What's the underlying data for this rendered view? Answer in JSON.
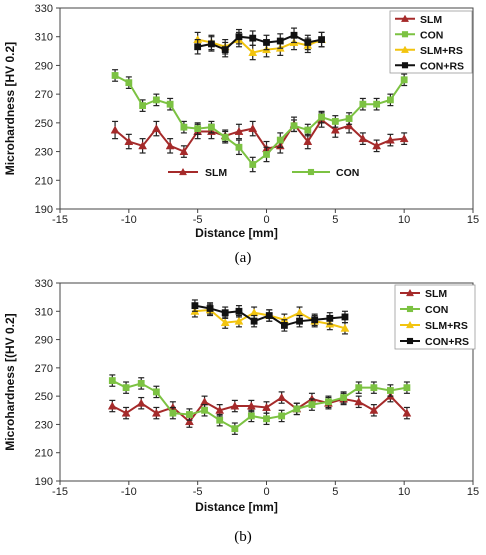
{
  "chart_data": [
    {
      "type": "line",
      "panel_label": "(a)",
      "xlabel": "Distance [mm]",
      "ylabel": "Microhardness [HV 0.2]",
      "xlim": [
        -15,
        15
      ],
      "ylim": [
        190,
        330
      ],
      "xticks": [
        -15,
        -10,
        -5,
        0,
        5,
        10,
        15
      ],
      "yticks": [
        190,
        210,
        230,
        250,
        270,
        290,
        310,
        330
      ],
      "grid": false,
      "legend": "top-right",
      "inline_labels": [
        "SLM",
        "CON"
      ],
      "series": [
        {
          "name": "SLM",
          "color": "#a52a2a",
          "marker": "triangle",
          "x": [
            -11,
            -10,
            -9,
            -8,
            -7,
            -6,
            -5,
            -4,
            -3,
            -2,
            -1,
            0,
            1,
            2,
            3,
            4,
            5,
            6,
            7,
            8,
            9,
            10
          ],
          "y": [
            245,
            237,
            234,
            246,
            234,
            230,
            244,
            244,
            241,
            244,
            246,
            232,
            234,
            249,
            237,
            252,
            245,
            248,
            239,
            234,
            238,
            239
          ],
          "err": [
            6,
            5,
            5,
            5,
            5,
            4,
            5,
            5,
            4,
            5,
            5,
            5,
            5,
            5,
            5,
            5,
            5,
            5,
            4,
            4,
            4,
            4
          ]
        },
        {
          "name": "CON",
          "color": "#7cc242",
          "marker": "square",
          "x": [
            -11,
            -10,
            -9,
            -8,
            -7,
            -6,
            -5,
            -4,
            -3,
            -2,
            -1,
            0,
            1,
            2,
            3,
            4,
            5,
            6,
            7,
            8,
            9,
            10
          ],
          "y": [
            283,
            278,
            262,
            266,
            263,
            247,
            246,
            247,
            240,
            233,
            221,
            228,
            238,
            248,
            245,
            254,
            251,
            253,
            263,
            263,
            266,
            280
          ],
          "err": [
            4,
            4,
            4,
            4,
            4,
            4,
            4,
            4,
            4,
            5,
            5,
            5,
            5,
            4,
            4,
            4,
            4,
            4,
            4,
            4,
            4,
            4
          ]
        },
        {
          "name": "SLM+RS",
          "color": "#f2c40f",
          "marker": "triangle",
          "x": [
            -5,
            -4,
            -3,
            -2,
            -1,
            0,
            1,
            2,
            3,
            4
          ],
          "y": [
            308,
            306,
            303,
            308,
            299,
            301,
            302,
            306,
            304,
            308
          ],
          "err": [
            5,
            5,
            5,
            5,
            5,
            5,
            5,
            5,
            5,
            5
          ]
        },
        {
          "name": "CON+RS",
          "color": "#111111",
          "marker": "square",
          "x": [
            -5,
            -4,
            -3,
            -2,
            -1,
            0,
            1,
            2,
            3,
            4
          ],
          "y": [
            303,
            305,
            301,
            310,
            309,
            306,
            307,
            311,
            306,
            308
          ],
          "err": [
            5,
            5,
            5,
            5,
            5,
            5,
            5,
            5,
            5,
            5
          ]
        }
      ]
    },
    {
      "type": "line",
      "panel_label": "(b)",
      "xlabel": "Distance [mm]",
      "ylabel": "Microhardness [(HV 0.2]",
      "xlim": [
        -15,
        15
      ],
      "ylim": [
        190,
        330
      ],
      "xticks": [
        -15,
        -10,
        -5,
        0,
        5,
        10,
        15
      ],
      "yticks": [
        190,
        210,
        230,
        250,
        270,
        290,
        310,
        330
      ],
      "grid": false,
      "legend": "top-right",
      "inline_labels": [],
      "series": [
        {
          "name": "SLM",
          "color": "#a52a2a",
          "marker": "triangle",
          "x": [
            -11.2,
            -10.2,
            -9.1,
            -8,
            -6.8,
            -5.6,
            -4.5,
            -3.4,
            -2.3,
            -1.1,
            0,
            1.1,
            2.2,
            3.3,
            4.5,
            5.6,
            6.7,
            7.8,
            9,
            10.2
          ],
          "y": [
            243,
            238,
            245,
            238,
            242,
            232,
            246,
            240,
            243,
            243,
            242,
            249,
            241,
            248,
            245,
            248,
            246,
            240,
            250,
            238
          ],
          "err": [
            4,
            4,
            4,
            4,
            4,
            4,
            4,
            4,
            4,
            4,
            4,
            4,
            4,
            4,
            4,
            4,
            4,
            4,
            4,
            4
          ]
        },
        {
          "name": "CON",
          "color": "#7cc242",
          "marker": "square",
          "x": [
            -11.2,
            -10.2,
            -9.1,
            -8,
            -6.8,
            -5.6,
            -4.5,
            -3.4,
            -2.3,
            -1.1,
            0,
            1.1,
            2.2,
            3.3,
            4.5,
            5.6,
            6.7,
            7.8,
            9,
            10.2
          ],
          "y": [
            261,
            256,
            259,
            253,
            238,
            237,
            240,
            233,
            227,
            236,
            234,
            236,
            241,
            244,
            246,
            249,
            256,
            256,
            254,
            256
          ],
          "err": [
            4,
            4,
            4,
            4,
            4,
            4,
            4,
            4,
            4,
            4,
            4,
            4,
            4,
            4,
            4,
            4,
            4,
            4,
            4,
            4
          ]
        },
        {
          "name": "SLM+RS",
          "color": "#f2c40f",
          "marker": "triangle",
          "x": [
            -5.2,
            -4.1,
            -3,
            -2,
            -0.9,
            0.2,
            1.3,
            2.4,
            3.5,
            4.6,
            5.7
          ],
          "y": [
            310,
            311,
            302,
            303,
            309,
            307,
            304,
            309,
            303,
            301,
            298
          ],
          "err": [
            4,
            4,
            4,
            4,
            4,
            4,
            4,
            4,
            4,
            4,
            4
          ]
        },
        {
          "name": "CON+RS",
          "color": "#111111",
          "marker": "square",
          "x": [
            -5.2,
            -4.1,
            -3,
            -2,
            -0.9,
            0.2,
            1.3,
            2.4,
            3.5,
            4.6,
            5.7
          ],
          "y": [
            314,
            312,
            309,
            310,
            303,
            307,
            300,
            303,
            304,
            305,
            306
          ],
          "err": [
            4,
            4,
            4,
            4,
            4,
            4,
            4,
            4,
            4,
            4,
            4
          ]
        }
      ]
    }
  ]
}
